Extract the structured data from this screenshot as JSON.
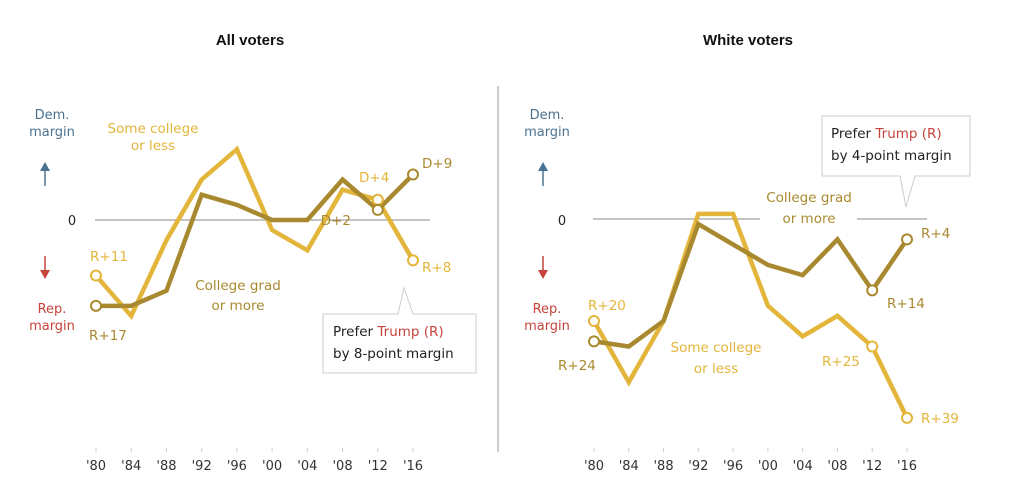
{
  "colors": {
    "some_college": "#e3b53a",
    "college_grad": "#a9892f",
    "dem": "#4a7290",
    "rep": "#c6443c",
    "zero_line": "#888888",
    "divider": "#aaaaaa"
  },
  "axis_labels": {
    "dem_line1": "Dem.",
    "dem_line2": "margin",
    "rep_line1": "Rep.",
    "rep_line2": "margin",
    "zero": "0"
  },
  "chart_data": [
    {
      "type": "line",
      "title": "All voters",
      "x": [
        "'80",
        "'84",
        "'88",
        "'92",
        "'96",
        "'00",
        "'04",
        "'08",
        "'12",
        "'16"
      ],
      "xlabel": "",
      "ylabel": "Democratic margin (positive) / Republican margin (negative)",
      "ylim": [
        -25,
        20
      ],
      "grid": false,
      "series": [
        {
          "name": "Some college or less",
          "label_line1": "Some college",
          "label_line2": "or less",
          "values": [
            -11,
            -19,
            -4,
            8,
            14,
            -2,
            -6,
            6,
            4,
            -8
          ]
        },
        {
          "name": "College grad or more",
          "label_line1": "College grad",
          "label_line2": "or more",
          "values": [
            -17,
            -17,
            -14,
            5,
            3,
            0,
            0,
            8,
            2,
            9
          ]
        }
      ],
      "annotations": [
        {
          "text": "R+11",
          "series": 0,
          "index": 0
        },
        {
          "text": "R+17",
          "series": 1,
          "index": 0
        },
        {
          "text": "D+4",
          "series": 0,
          "index": 8
        },
        {
          "text": "D+2",
          "series": 1,
          "index": 8
        },
        {
          "text": "D+9",
          "series": 1,
          "index": 9
        },
        {
          "text": "R+8",
          "series": 0,
          "index": 9
        }
      ],
      "callout": {
        "prefix": "Prefer ",
        "highlight": "Trump (R)",
        "line2": "by 8-point margin"
      }
    },
    {
      "type": "line",
      "title": "White voters",
      "x": [
        "'80",
        "'84",
        "'88",
        "'92",
        "'96",
        "'00",
        "'04",
        "'08",
        "'12",
        "'16"
      ],
      "xlabel": "",
      "ylabel": "Democratic margin (positive) / Republican margin (negative)",
      "ylim": [
        -45,
        20
      ],
      "grid": false,
      "series": [
        {
          "name": "Some college or less",
          "label_line1": "Some college",
          "label_line2": "or less",
          "values": [
            -20,
            -32,
            -20,
            1,
            1,
            -17,
            -23,
            -19,
            -25,
            -39
          ]
        },
        {
          "name": "College grad or more",
          "label_line1": "College grad",
          "label_line2": "or more",
          "values": [
            -24,
            -25,
            -20,
            -1,
            -5,
            -9,
            -11,
            -4,
            -14,
            -4
          ]
        }
      ],
      "annotations": [
        {
          "text": "R+20",
          "series": 0,
          "index": 0
        },
        {
          "text": "R+24",
          "series": 1,
          "index": 0
        },
        {
          "text": "R+25",
          "series": 0,
          "index": 8
        },
        {
          "text": "R+14",
          "series": 1,
          "index": 8
        },
        {
          "text": "R+4",
          "series": 1,
          "index": 9
        },
        {
          "text": "R+39",
          "series": 0,
          "index": 9
        }
      ],
      "callout": {
        "prefix": "Prefer ",
        "highlight": "Trump (R)",
        "line2": "by 4-point margin"
      }
    }
  ]
}
